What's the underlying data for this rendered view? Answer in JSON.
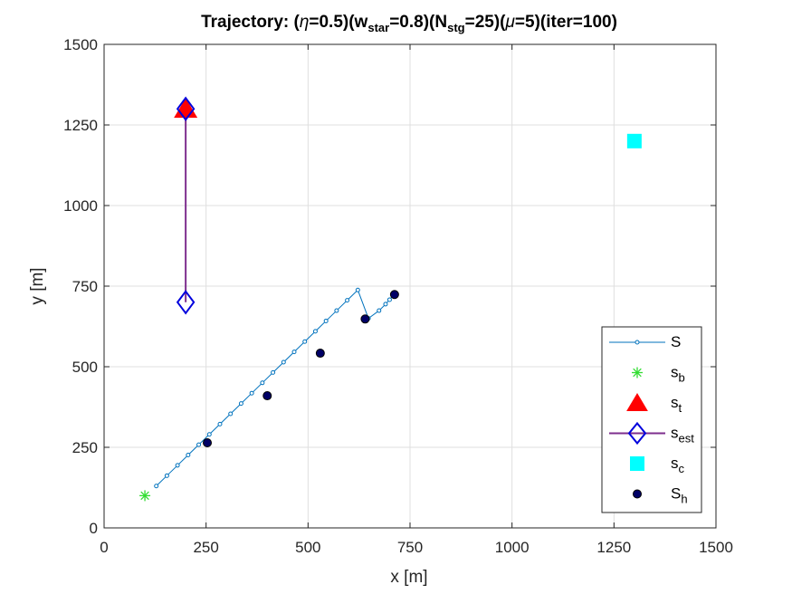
{
  "chart_data": {
    "type": "scatter",
    "title_parts": {
      "t1": "Trajectory: (",
      "eta": "η",
      "t2": "=0.5)(w",
      "sub1": "star",
      "t3": "=0.8)(N",
      "sub2": "stg",
      "t4": "=25)(",
      "mu": "μ",
      "t5": "=5)(iter=100)"
    },
    "xlabel": "x [m]",
    "ylabel": "y [m]",
    "xlim": [
      0,
      1500
    ],
    "ylim": [
      0,
      1500
    ],
    "xticks": [
      "0",
      "250",
      "500",
      "750",
      "1000",
      "1250",
      "1500"
    ],
    "yticks": [
      "0",
      "250",
      "500",
      "750",
      "1000",
      "1250",
      "1500"
    ],
    "grid": true,
    "legend_position": "bottom-right",
    "series": [
      {
        "key": "S",
        "legend": {
          "main": "S",
          "sub": ""
        },
        "color": "#0072BD",
        "x": [
          128,
          154,
          180,
          206,
          232,
          258,
          284,
          310,
          336,
          362,
          388,
          414,
          440,
          466,
          492,
          518,
          544,
          570,
          596,
          622,
          648,
          674,
          690,
          700,
          710
        ],
        "y": [
          130,
          162,
          194,
          226,
          258,
          290,
          322,
          354,
          386,
          418,
          450,
          482,
          514,
          546,
          578,
          610,
          642,
          674,
          706,
          738,
          650,
          674,
          694,
          708,
          724
        ]
      },
      {
        "key": "sb",
        "legend": {
          "main": "s",
          "sub": "b"
        },
        "color": "#33DD33",
        "x": [
          100
        ],
        "y": [
          100
        ]
      },
      {
        "key": "st",
        "legend": {
          "main": "s",
          "sub": "t"
        },
        "color": "#FF0000",
        "x": [
          200
        ],
        "y": [
          1300
        ]
      },
      {
        "key": "sest",
        "legend": {
          "main": "s",
          "sub": "est"
        },
        "color": "#0000DD",
        "line_color": "#7E2F8E",
        "x": [
          200,
          200
        ],
        "y": [
          700,
          1300
        ]
      },
      {
        "key": "sc",
        "legend": {
          "main": "s",
          "sub": "c"
        },
        "color": "#00FFFF",
        "x": [
          1300
        ],
        "y": [
          1200
        ]
      },
      {
        "key": "Sh",
        "legend": {
          "main": "S",
          "sub": "h"
        },
        "color": "#000066",
        "x": [
          253,
          400,
          530,
          640,
          712
        ],
        "y": [
          264,
          410,
          542,
          648,
          724
        ]
      }
    ]
  }
}
